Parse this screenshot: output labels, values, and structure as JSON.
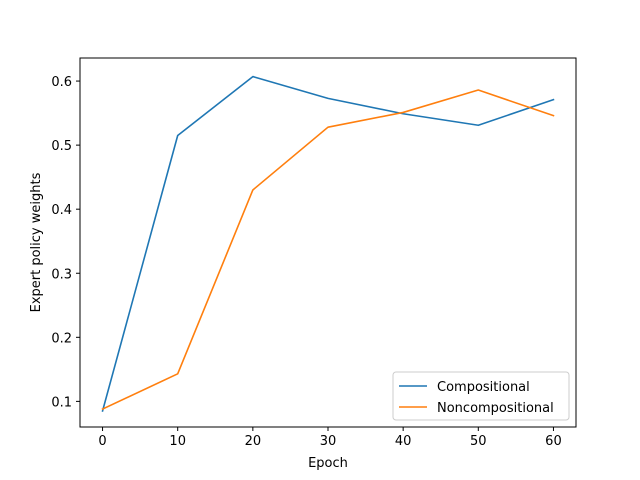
{
  "chart_data": {
    "type": "line",
    "title": "",
    "xlabel": "Epoch",
    "ylabel": "Expert policy weights",
    "x": [
      0,
      10,
      20,
      30,
      40,
      50,
      60
    ],
    "xticks": [
      0,
      10,
      20,
      30,
      40,
      50,
      60
    ],
    "yticks": [
      0.1,
      0.2,
      0.3,
      0.4,
      0.5,
      0.6
    ],
    "xlim": [
      -3,
      63
    ],
    "ylim": [
      0.06,
      0.636
    ],
    "grid": false,
    "legend_position": "lower-right",
    "series": [
      {
        "name": "Compositional",
        "color": "#1f77b4",
        "values": [
          0.085,
          0.515,
          0.607,
          0.573,
          0.549,
          0.531,
          0.571
        ]
      },
      {
        "name": "Noncompositional",
        "color": "#ff7f0e",
        "values": [
          0.088,
          0.143,
          0.43,
          0.528,
          0.551,
          0.586,
          0.546
        ]
      }
    ]
  }
}
